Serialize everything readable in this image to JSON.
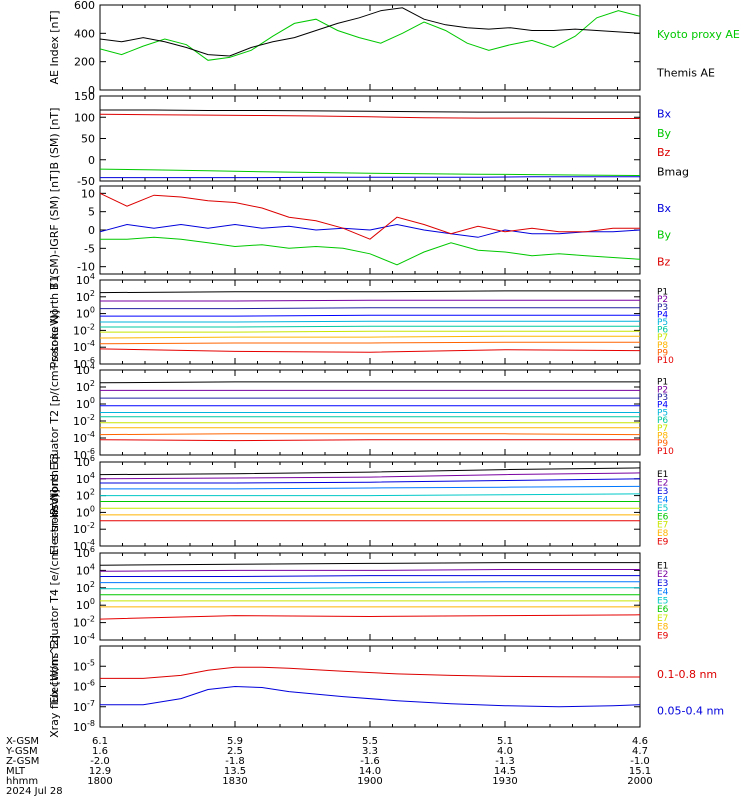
{
  "x_axis": {
    "time_label": "hhmm",
    "date_label": "2024 Jul 28",
    "rows": [
      {
        "label": "X-GSM",
        "values": [
          "6.1",
          "5.9",
          "5.5",
          "5.1",
          "4.6"
        ]
      },
      {
        "label": "Y-GSM",
        "values": [
          "1.6",
          "2.5",
          "3.3",
          "4.0",
          "4.7"
        ]
      },
      {
        "label": "Z-GSM",
        "values": [
          "-2.0",
          "-1.8",
          "-1.6",
          "-1.3",
          "-1.0"
        ]
      },
      {
        "label": "MLT",
        "values": [
          "12.9",
          "13.5",
          "14.0",
          "14.5",
          "15.1"
        ]
      },
      {
        "label": "hhmm",
        "values": [
          "1800",
          "1830",
          "1900",
          "1930",
          "2000"
        ]
      }
    ]
  },
  "chart_data": [
    {
      "type": "line",
      "ylabel": "AE Index [nT]",
      "ylim": [
        0,
        600
      ],
      "yticks": [
        "0",
        "200",
        "400",
        "600"
      ],
      "x": [
        0,
        0.04,
        0.08,
        0.12,
        0.16,
        0.2,
        0.24,
        0.28,
        0.32,
        0.36,
        0.4,
        0.44,
        0.48,
        0.52,
        0.56,
        0.6,
        0.64,
        0.68,
        0.72,
        0.76,
        0.8,
        0.84,
        0.88,
        0.92,
        0.96,
        1.0
      ],
      "series": [
        {
          "name": "Kyoto proxy AE",
          "color": "#00c800",
          "values": [
            290,
            250,
            310,
            360,
            320,
            210,
            230,
            280,
            380,
            470,
            500,
            420,
            370,
            330,
            400,
            480,
            420,
            330,
            280,
            320,
            350,
            300,
            380,
            510,
            560,
            520
          ]
        },
        {
          "name": "Themis AE",
          "color": "#000000",
          "values": [
            360,
            340,
            370,
            340,
            300,
            250,
            240,
            300,
            340,
            370,
            420,
            470,
            510,
            560,
            580,
            500,
            460,
            440,
            430,
            440,
            420,
            420,
            430,
            420,
            410,
            400
          ]
        }
      ]
    },
    {
      "type": "line",
      "ylabel": "B (SM) [nT]",
      "ylim": [
        -50,
        150
      ],
      "yticks": [
        "-50",
        "0",
        "50",
        "100",
        "150"
      ],
      "x": [
        0,
        0.1,
        0.2,
        0.3,
        0.4,
        0.5,
        0.6,
        0.7,
        0.8,
        0.9,
        1.0
      ],
      "series": [
        {
          "name": "Bx",
          "color": "#0000dc",
          "values": [
            -42,
            -42,
            -42,
            -42,
            -41,
            -41,
            -41,
            -41,
            -40,
            -40,
            -40
          ]
        },
        {
          "name": "By",
          "color": "#00c800",
          "values": [
            -22,
            -24,
            -26,
            -28,
            -30,
            -32,
            -33,
            -34,
            -35,
            -36,
            -37
          ]
        },
        {
          "name": "Bz",
          "color": "#dc0000",
          "values": [
            107,
            106,
            105,
            104,
            103,
            101,
            99,
            98,
            98,
            97,
            97
          ]
        },
        {
          "name": "Bmag",
          "color": "#000000",
          "values": [
            117,
            117,
            116,
            116,
            115,
            114,
            113,
            112,
            112,
            112,
            112
          ]
        }
      ]
    },
    {
      "type": "line",
      "ylabel": "B (SM)-IGRF (SM) [nT]",
      "ylim": [
        -12,
        12
      ],
      "yticks": [
        "-10",
        "-5",
        "0",
        "5",
        "10"
      ],
      "x": [
        0,
        0.05,
        0.1,
        0.15,
        0.2,
        0.25,
        0.3,
        0.35,
        0.4,
        0.45,
        0.5,
        0.55,
        0.6,
        0.65,
        0.7,
        0.75,
        0.8,
        0.85,
        0.9,
        0.95,
        1.0
      ],
      "series": [
        {
          "name": "Bx",
          "color": "#0000dc",
          "values": [
            -0.5,
            1.5,
            0.5,
            1.5,
            0.5,
            1.5,
            0.5,
            1.0,
            0.0,
            0.5,
            0.0,
            1.5,
            0.0,
            -1.0,
            -2.0,
            0.0,
            -1.0,
            -1.0,
            -0.5,
            -0.5,
            0.0
          ]
        },
        {
          "name": "By",
          "color": "#00c800",
          "values": [
            -2.5,
            -2.5,
            -2.0,
            -2.5,
            -3.5,
            -4.5,
            -4.0,
            -5.0,
            -4.5,
            -5.0,
            -6.5,
            -9.5,
            -6.0,
            -3.5,
            -5.5,
            -6.0,
            -7.0,
            -6.5,
            -7.0,
            -7.5,
            -8.0
          ]
        },
        {
          "name": "Bz",
          "color": "#dc0000",
          "values": [
            10.0,
            6.5,
            9.5,
            9.0,
            8.0,
            7.5,
            6.0,
            3.5,
            2.5,
            0.5,
            -2.5,
            3.5,
            1.5,
            -1.0,
            1.0,
            -0.5,
            0.5,
            -0.5,
            -0.5,
            0.5,
            0.5
          ]
        }
      ]
    },
    {
      "type": "line",
      "ylabel": "Protons North T1",
      "log": true,
      "ylim": [
        -6,
        4
      ],
      "yticks": [
        "10^-6",
        "10^-4",
        "10^-2",
        "10^0",
        "10^2",
        "10^4"
      ],
      "x": [
        0,
        0.25,
        0.5,
        0.75,
        1.0
      ],
      "series": [
        {
          "name": "P1",
          "color": "#000000",
          "values": [
            2.5,
            2.6,
            2.6,
            2.7,
            2.7
          ]
        },
        {
          "name": "P2",
          "color": "#7800a0",
          "values": [
            1.5,
            1.5,
            1.6,
            1.6,
            1.6
          ]
        },
        {
          "name": "P3",
          "color": "#2020a0",
          "values": [
            0.6,
            0.6,
            0.7,
            0.7,
            0.7
          ]
        },
        {
          "name": "P4",
          "color": "#0000ff",
          "values": [
            -0.3,
            -0.3,
            -0.2,
            -0.2,
            -0.2
          ]
        },
        {
          "name": "P5",
          "color": "#00b4dc",
          "values": [
            -1.0,
            -1.0,
            -0.9,
            -0.9,
            -0.9
          ]
        },
        {
          "name": "P6",
          "color": "#00c8a0",
          "values": [
            -1.6,
            -1.6,
            -1.5,
            -1.5,
            -1.5
          ]
        },
        {
          "name": "P7",
          "color": "#c8e600",
          "values": [
            -2.2,
            -2.2,
            -2.1,
            -2.1,
            -2.1
          ]
        },
        {
          "name": "P8",
          "color": "#ffb400",
          "values": [
            -2.9,
            -2.8,
            -2.8,
            -2.7,
            -2.7
          ]
        },
        {
          "name": "P9",
          "color": "#ff6400",
          "values": [
            -3.6,
            -3.5,
            -3.5,
            -3.4,
            -3.4
          ]
        },
        {
          "name": "P10",
          "color": "#e60000",
          "values": [
            -4.2,
            -4.5,
            -4.6,
            -4.3,
            -4.4
          ]
        }
      ]
    },
    {
      "type": "line",
      "ylabel": "Protons Equator T2 [p/(cm²-s-sr-keV)]",
      "log": true,
      "ylim": [
        -6,
        4
      ],
      "yticks": [
        "10^-6",
        "10^-4",
        "10^-2",
        "10^0",
        "10^2",
        "10^4"
      ],
      "x": [
        0,
        0.25,
        0.5,
        0.75,
        1.0
      ],
      "series": [
        {
          "name": "P1",
          "color": "#000000",
          "values": [
            2.5,
            2.6,
            2.6,
            2.6,
            2.6
          ]
        },
        {
          "name": "P2",
          "color": "#7800a0",
          "values": [
            1.6,
            1.6,
            1.6,
            1.6,
            1.6
          ]
        },
        {
          "name": "P3",
          "color": "#2020a0",
          "values": [
            0.7,
            0.7,
            0.7,
            0.7,
            0.7
          ]
        },
        {
          "name": "P4",
          "color": "#0000ff",
          "values": [
            -0.2,
            -0.2,
            -0.2,
            -0.2,
            -0.2
          ]
        },
        {
          "name": "P5",
          "color": "#00b4dc",
          "values": [
            -1.0,
            -1.0,
            -1.0,
            -1.0,
            -1.0
          ]
        },
        {
          "name": "P6",
          "color": "#00c8a0",
          "values": [
            -1.5,
            -1.5,
            -1.5,
            -1.5,
            -1.5
          ]
        },
        {
          "name": "P7",
          "color": "#c8e600",
          "values": [
            -2.2,
            -2.2,
            -2.2,
            -2.2,
            -2.2
          ]
        },
        {
          "name": "P8",
          "color": "#ffb400",
          "values": [
            -2.8,
            -2.8,
            -2.8,
            -2.8,
            -2.8
          ]
        },
        {
          "name": "P9",
          "color": "#ff6400",
          "values": [
            -3.6,
            -3.5,
            -3.5,
            -3.5,
            -3.6
          ]
        },
        {
          "name": "P10",
          "color": "#e60000",
          "values": [
            -4.2,
            -4.3,
            -4.2,
            -4.2,
            -4.2
          ]
        }
      ]
    },
    {
      "type": "line",
      "ylabel": "Electrons North T3",
      "log": true,
      "ylim": [
        -4,
        6
      ],
      "yticks": [
        "10^-4",
        "10^-2",
        "10^0",
        "10^2",
        "10^4",
        "10^6"
      ],
      "x": [
        0,
        0.25,
        0.5,
        0.75,
        1.0
      ],
      "series": [
        {
          "name": "E1",
          "color": "#000000",
          "values": [
            4.5,
            4.6,
            4.8,
            5.1,
            5.3
          ]
        },
        {
          "name": "E2",
          "color": "#7800a0",
          "values": [
            4.0,
            4.1,
            4.2,
            4.5,
            4.7
          ]
        },
        {
          "name": "E3",
          "color": "#0000dc",
          "values": [
            3.5,
            3.5,
            3.6,
            3.8,
            4.0
          ]
        },
        {
          "name": "E4",
          "color": "#0078ff",
          "values": [
            2.8,
            2.8,
            2.9,
            3.0,
            3.1
          ]
        },
        {
          "name": "E5",
          "color": "#00c8c8",
          "values": [
            2.0,
            2.0,
            2.0,
            2.1,
            2.2
          ]
        },
        {
          "name": "E6",
          "color": "#00c800",
          "values": [
            1.3,
            1.3,
            1.3,
            1.3,
            1.3
          ]
        },
        {
          "name": "E7",
          "color": "#c8e600",
          "values": [
            0.5,
            0.5,
            0.5,
            0.5,
            0.5
          ]
        },
        {
          "name": "E8",
          "color": "#ffb400",
          "values": [
            -0.3,
            -0.3,
            -0.3,
            -0.3,
            -0.3
          ]
        },
        {
          "name": "E9",
          "color": "#e60000",
          "values": [
            -1.0,
            -1.0,
            -1.0,
            -1.0,
            -1.0
          ]
        }
      ]
    },
    {
      "type": "line",
      "ylabel": "Electrons Equator T4 [e/(cm²-s-sr-keV)]",
      "log": true,
      "ylim": [
        -4,
        6
      ],
      "yticks": [
        "10^-4",
        "10^-2",
        "10^0",
        "10^2",
        "10^4",
        "10^6"
      ],
      "x": [
        0,
        0.25,
        0.5,
        0.75,
        1.0
      ],
      "series": [
        {
          "name": "E1",
          "color": "#000000",
          "values": [
            4.6,
            4.7,
            4.8,
            4.9,
            4.9
          ]
        },
        {
          "name": "E2",
          "color": "#7800a0",
          "values": [
            3.9,
            4.0,
            4.0,
            4.1,
            4.1
          ]
        },
        {
          "name": "E3",
          "color": "#0000dc",
          "values": [
            3.3,
            3.3,
            3.4,
            3.4,
            3.4
          ]
        },
        {
          "name": "E4",
          "color": "#0078ff",
          "values": [
            2.6,
            2.6,
            2.6,
            2.7,
            2.7
          ]
        },
        {
          "name": "E5",
          "color": "#00c8c8",
          "values": [
            1.9,
            1.9,
            2.0,
            2.0,
            2.0
          ]
        },
        {
          "name": "E6",
          "color": "#00c800",
          "values": [
            1.2,
            1.2,
            1.2,
            1.2,
            1.2
          ]
        },
        {
          "name": "E7",
          "color": "#c8e600",
          "values": [
            0.5,
            0.5,
            0.5,
            0.5,
            0.5
          ]
        },
        {
          "name": "E8",
          "color": "#ffb400",
          "values": [
            -0.2,
            -0.2,
            -0.2,
            -0.2,
            -0.2
          ]
        },
        {
          "name": "E9",
          "color": "#e60000",
          "values": [
            -1.6,
            -1.2,
            -1.3,
            -1.2,
            -1.1
          ]
        }
      ]
    },
    {
      "type": "line",
      "ylabel": "Xray flux [W/m^2]",
      "log": true,
      "ylim": [
        -8,
        -4
      ],
      "yticks": [
        "10^-8",
        "10^-7",
        "10^-6",
        "10^-5"
      ],
      "x": [
        0,
        0.08,
        0.15,
        0.2,
        0.25,
        0.3,
        0.35,
        0.45,
        0.55,
        0.65,
        0.75,
        0.85,
        0.95,
        1.0
      ],
      "series": [
        {
          "name": "0.1-0.8 nm",
          "color": "#dc0000",
          "values": [
            -5.6,
            -5.6,
            -5.45,
            -5.2,
            -5.05,
            -5.05,
            -5.1,
            -5.25,
            -5.38,
            -5.45,
            -5.5,
            -5.52,
            -5.53,
            -5.53
          ]
        },
        {
          "name": "0.05-0.4 nm",
          "color": "#0000dc",
          "values": [
            -6.9,
            -6.9,
            -6.6,
            -6.15,
            -6.0,
            -6.05,
            -6.25,
            -6.5,
            -6.7,
            -6.85,
            -6.95,
            -7.0,
            -6.95,
            -6.9
          ]
        }
      ]
    }
  ]
}
